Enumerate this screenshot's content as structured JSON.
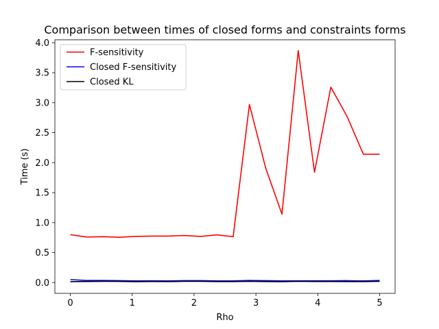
{
  "chart_data": {
    "type": "line",
    "title": "Comparison between times of closed forms and constraints forms",
    "xlabel": "Rho",
    "ylabel": "Time (s)",
    "xlim": [
      -0.25,
      5.25
    ],
    "ylim": [
      -0.18,
      4.05
    ],
    "xticks": [
      0,
      1,
      2,
      3,
      4,
      5
    ],
    "yticks": [
      0.0,
      0.5,
      1.0,
      1.5,
      2.0,
      2.5,
      3.0,
      3.5,
      4.0
    ],
    "xtick_labels": [
      "0",
      "1",
      "2",
      "3",
      "4",
      "5"
    ],
    "ytick_labels": [
      "0.0",
      "0.5",
      "1.0",
      "1.5",
      "2.0",
      "2.5",
      "3.0",
      "3.5",
      "4.0"
    ],
    "legend_position": "upper-left",
    "grid": false,
    "x": [
      0,
      0.263,
      0.526,
      0.789,
      1.053,
      1.316,
      1.579,
      1.842,
      2.105,
      2.368,
      2.632,
      2.895,
      3.158,
      3.421,
      3.684,
      3.947,
      4.211,
      4.474,
      4.737,
      5.0
    ],
    "series": [
      {
        "name": "F-sensitivity",
        "color": "#ff0000",
        "values": [
          0.8,
          0.76,
          0.765,
          0.755,
          0.77,
          0.775,
          0.775,
          0.785,
          0.77,
          0.795,
          0.765,
          2.97,
          1.91,
          1.14,
          3.87,
          1.84,
          3.26,
          2.77,
          2.14,
          2.14
        ]
      },
      {
        "name": "Closed F-sensitivity",
        "color": "#0000ff",
        "values": [
          0.05,
          0.035,
          0.035,
          0.033,
          0.028,
          0.03,
          0.028,
          0.032,
          0.032,
          0.028,
          0.028,
          0.035,
          0.032,
          0.028,
          0.03,
          0.03,
          0.03,
          0.032,
          0.028,
          0.035
        ]
      },
      {
        "name": "Closed KL",
        "color": "#000000",
        "values": [
          0.015,
          0.018,
          0.02,
          0.019,
          0.015,
          0.018,
          0.016,
          0.02,
          0.02,
          0.017,
          0.016,
          0.02,
          0.017,
          0.015,
          0.02,
          0.018,
          0.018,
          0.017,
          0.017,
          0.02
        ]
      }
    ]
  }
}
